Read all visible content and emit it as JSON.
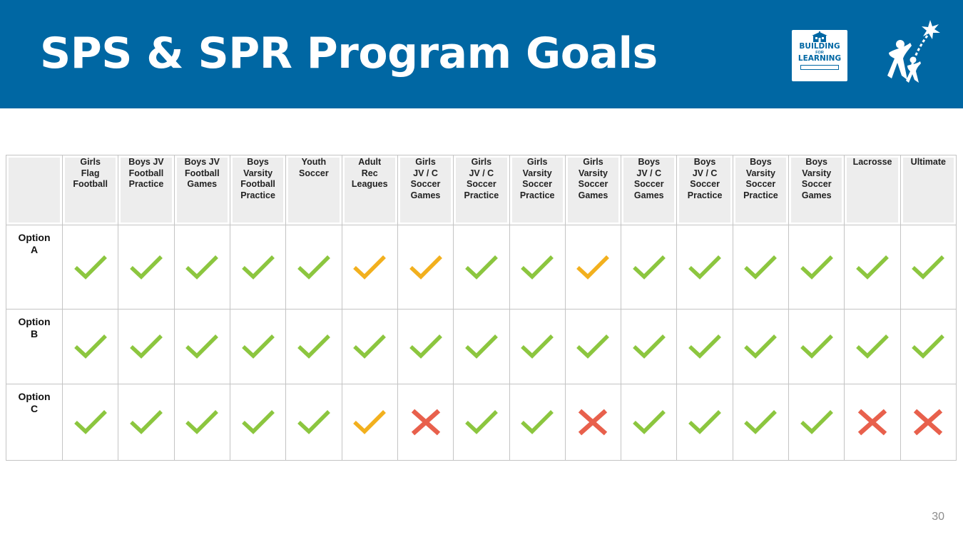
{
  "slide": {
    "title": "SPS & SPR Program Goals",
    "page_number": "30"
  },
  "logos": {
    "building_for_learning": {
      "line1": "BUILDING",
      "line2": "FOR",
      "line3": "LEARNING"
    },
    "colors": {
      "brand_blue": "#0067a3"
    }
  },
  "table": {
    "columns": [
      "Girls Flag Football",
      "Boys JV Football Practice",
      "Boys JV Football Games",
      "Boys Varsity Football Practice",
      "Youth Soccer",
      "Adult Rec Leagues",
      "Girls JV / C Soccer Games",
      "Girls JV / C Soccer Practice",
      "Girls Varsity Soccer Practice",
      "Girls Varsity Soccer Games",
      "Boys JV / C Soccer Games",
      "Boys JV / C Soccer Practice",
      "Boys Varsity Soccer Practice",
      "Boys Varsity Soccer Games",
      "Lacrosse",
      "Ultimate"
    ],
    "column_lines": [
      [
        "Girls",
        "Flag",
        "Football"
      ],
      [
        "Boys JV",
        "Football",
        "Practice"
      ],
      [
        "Boys JV",
        "Football",
        "Games"
      ],
      [
        "Boys",
        "Varsity",
        "Football",
        "Practice"
      ],
      [
        "Youth",
        "Soccer"
      ],
      [
        "Adult",
        "Rec",
        "Leagues"
      ],
      [
        "Girls",
        "JV / C",
        "Soccer",
        "Games"
      ],
      [
        "Girls",
        "JV / C",
        "Soccer",
        "Practice"
      ],
      [
        "Girls",
        "Varsity",
        "Soccer",
        "Practice"
      ],
      [
        "Girls",
        "Varsity",
        "Soccer",
        "Games"
      ],
      [
        "Boys",
        "JV / C",
        "Soccer",
        "Games"
      ],
      [
        "Boys",
        "JV  / C",
        "Soccer",
        "Practice"
      ],
      [
        "Boys",
        "Varsity",
        "Soccer",
        "Practice"
      ],
      [
        "Boys",
        "Varsity",
        "Soccer",
        "Games"
      ],
      [
        "Lacrosse"
      ],
      [
        "Ultimate"
      ]
    ],
    "rows": [
      {
        "label_lines": [
          "Option",
          "A"
        ],
        "cells": [
          "check",
          "check",
          "check",
          "check",
          "check",
          "partial",
          "partial",
          "check",
          "check",
          "partial",
          "check",
          "check",
          "check",
          "check",
          "check",
          "check"
        ]
      },
      {
        "label_lines": [
          "Option",
          "B"
        ],
        "cells": [
          "check",
          "check",
          "check",
          "check",
          "check",
          "check",
          "check",
          "check",
          "check",
          "check",
          "check",
          "check",
          "check",
          "check",
          "check",
          "check"
        ]
      },
      {
        "label_lines": [
          "Option",
          "C"
        ],
        "cells": [
          "check",
          "check",
          "check",
          "check",
          "check",
          "partial",
          "cross",
          "check",
          "check",
          "cross",
          "check",
          "check",
          "check",
          "check",
          "cross",
          "cross"
        ]
      }
    ],
    "legend_colors": {
      "check": "#8cc63f",
      "partial": "#f2b01e",
      "cross": "#e8604c"
    },
    "icon_names": {
      "check": "green-check-icon",
      "partial": "yellow-check-icon",
      "cross": "red-x-icon"
    }
  }
}
